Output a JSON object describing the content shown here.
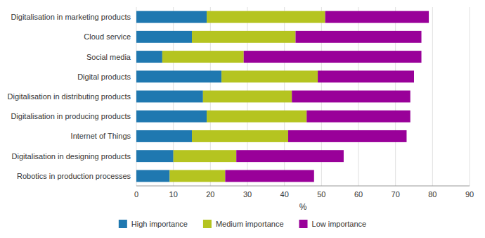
{
  "chart_data": {
    "type": "bar",
    "orientation": "horizontal",
    "stacked": true,
    "categories": [
      "Digitalisation in marketing products",
      "Cloud service",
      "Social media",
      "Digital products",
      "Digitalisation in distributing products",
      "Digitalisation in producing products",
      "Internet of Things",
      "Digitalisation in designing products",
      "Robotics in production processes"
    ],
    "series": [
      {
        "name": "High importance",
        "color": "#1f78b0",
        "values": [
          19,
          15,
          7,
          23,
          18,
          19,
          15,
          10,
          9
        ]
      },
      {
        "name": "Medium importance",
        "color": "#b5c420",
        "values": [
          32,
          28,
          22,
          26,
          24,
          27,
          26,
          17,
          15
        ]
      },
      {
        "name": "Low importance",
        "color": "#990099",
        "values": [
          28,
          34,
          48,
          26,
          32,
          28,
          32,
          29,
          24
        ]
      }
    ],
    "xlabel": "%",
    "xlim": [
      0,
      90
    ],
    "xticks": [
      0,
      10,
      20,
      30,
      40,
      50,
      60,
      70,
      80,
      90
    ],
    "grid": true,
    "legend": "bottom"
  }
}
